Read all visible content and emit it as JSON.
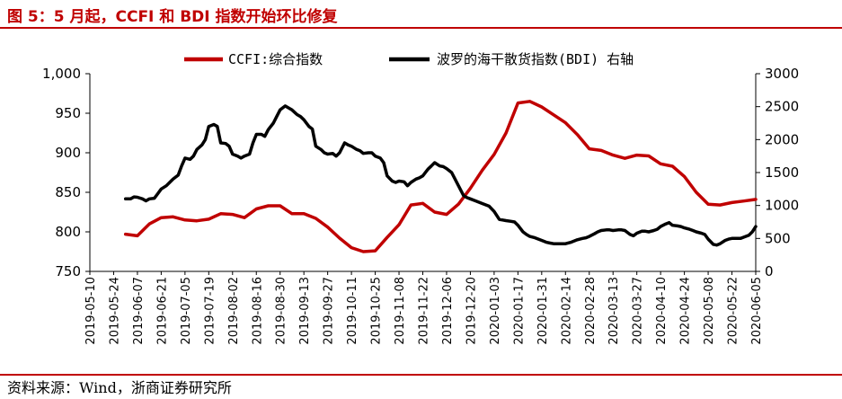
{
  "figure": {
    "title": "图 5：5 月起，CCFI 和 BDI 指数开始环比修复",
    "source": "资料来源：Wind，浙商证券研究所"
  },
  "colors": {
    "ccfi": "#c00000",
    "bdi": "#000000",
    "accent": "#c00000"
  },
  "chart_data": {
    "type": "line",
    "legend_placement": "top",
    "grid": false,
    "x_ticks": [
      "2019-05-10",
      "2019-05-24",
      "2019-06-07",
      "2019-06-21",
      "2019-07-05",
      "2019-07-19",
      "2019-08-02",
      "2019-08-16",
      "2019-08-30",
      "2019-09-13",
      "2019-09-27",
      "2019-10-11",
      "2019-10-25",
      "2019-11-08",
      "2019-11-22",
      "2019-12-06",
      "2019-12-20",
      "2020-01-03",
      "2020-01-17",
      "2020-01-31",
      "2020-02-14",
      "2020-02-28",
      "2020-03-13",
      "2020-03-27",
      "2020-04-10",
      "2020-04-24",
      "2020-05-08",
      "2020-05-22",
      "2020-06-05"
    ],
    "y_left": {
      "range": [
        750,
        1000
      ],
      "ticks": [
        750,
        800,
        850,
        900,
        950,
        1000
      ],
      "tick_labels": [
        "750",
        "800",
        "850",
        "900",
        "950",
        "1,000"
      ]
    },
    "y_right": {
      "range": [
        0,
        3000
      ],
      "ticks": [
        0,
        500,
        1000,
        1500,
        2000,
        2500,
        3000
      ],
      "tick_labels": [
        "0",
        "500",
        "1000",
        "1500",
        "2000",
        "2500",
        "3000"
      ]
    },
    "series": [
      {
        "name": "CCFI:综合指数",
        "axis": "left",
        "color": "#c00000",
        "points": [
          [
            "2019-05-31",
            797
          ],
          [
            "2019-06-07",
            795
          ],
          [
            "2019-06-14",
            810
          ],
          [
            "2019-06-21",
            818
          ],
          [
            "2019-06-28",
            819
          ],
          [
            "2019-07-05",
            815
          ],
          [
            "2019-07-12",
            814
          ],
          [
            "2019-07-19",
            816
          ],
          [
            "2019-07-26",
            823
          ],
          [
            "2019-08-02",
            822
          ],
          [
            "2019-08-09",
            818
          ],
          [
            "2019-08-16",
            829
          ],
          [
            "2019-08-23",
            833
          ],
          [
            "2019-08-30",
            833
          ],
          [
            "2019-09-06",
            823
          ],
          [
            "2019-09-13",
            823
          ],
          [
            "2019-09-20",
            817
          ],
          [
            "2019-09-27",
            806
          ],
          [
            "2019-10-04",
            792
          ],
          [
            "2019-10-11",
            780
          ],
          [
            "2019-10-18",
            775
          ],
          [
            "2019-10-25",
            776
          ],
          [
            "2019-11-01",
            793
          ],
          [
            "2019-11-08",
            809
          ],
          [
            "2019-11-15",
            834
          ],
          [
            "2019-11-22",
            836
          ],
          [
            "2019-11-29",
            825
          ],
          [
            "2019-12-06",
            822
          ],
          [
            "2019-12-13",
            835
          ],
          [
            "2019-12-20",
            855
          ],
          [
            "2019-12-27",
            878
          ],
          [
            "2020-01-03",
            898
          ],
          [
            "2020-01-10",
            925
          ],
          [
            "2020-01-17",
            963
          ],
          [
            "2020-01-24",
            965
          ],
          [
            "2020-01-31",
            958
          ],
          [
            "2020-02-07",
            948
          ],
          [
            "2020-02-14",
            938
          ],
          [
            "2020-02-21",
            923
          ],
          [
            "2020-02-28",
            905
          ],
          [
            "2020-03-06",
            903
          ],
          [
            "2020-03-13",
            897
          ],
          [
            "2020-03-20",
            893
          ],
          [
            "2020-03-27",
            897
          ],
          [
            "2020-04-03",
            896
          ],
          [
            "2020-04-10",
            886
          ],
          [
            "2020-04-17",
            883
          ],
          [
            "2020-04-24",
            870
          ],
          [
            "2020-05-01",
            850
          ],
          [
            "2020-05-08",
            835
          ],
          [
            "2020-05-15",
            834
          ],
          [
            "2020-05-22",
            837
          ],
          [
            "2020-05-29",
            839
          ],
          [
            "2020-06-05",
            841
          ]
        ]
      },
      {
        "name": "波罗的海干散货指数(BDI) 右轴",
        "axis": "right",
        "color": "#000000",
        "points": [
          [
            "2019-05-31",
            1100
          ],
          [
            "2019-06-03",
            1100
          ],
          [
            "2019-06-05",
            1130
          ],
          [
            "2019-06-07",
            1125
          ],
          [
            "2019-06-10",
            1100
          ],
          [
            "2019-06-12",
            1070
          ],
          [
            "2019-06-14",
            1100
          ],
          [
            "2019-06-17",
            1110
          ],
          [
            "2019-06-19",
            1180
          ],
          [
            "2019-06-21",
            1250
          ],
          [
            "2019-06-24",
            1300
          ],
          [
            "2019-06-26",
            1350
          ],
          [
            "2019-06-28",
            1400
          ],
          [
            "2019-07-01",
            1460
          ],
          [
            "2019-07-03",
            1600
          ],
          [
            "2019-07-05",
            1720
          ],
          [
            "2019-07-08",
            1700
          ],
          [
            "2019-07-10",
            1750
          ],
          [
            "2019-07-12",
            1850
          ],
          [
            "2019-07-15",
            1920
          ],
          [
            "2019-07-17",
            2000
          ],
          [
            "2019-07-19",
            2200
          ],
          [
            "2019-07-22",
            2230
          ],
          [
            "2019-07-24",
            2200
          ],
          [
            "2019-07-26",
            1950
          ],
          [
            "2019-07-29",
            1940
          ],
          [
            "2019-07-31",
            1900
          ],
          [
            "2019-08-02",
            1780
          ],
          [
            "2019-08-05",
            1750
          ],
          [
            "2019-08-07",
            1720
          ],
          [
            "2019-08-09",
            1750
          ],
          [
            "2019-08-12",
            1780
          ],
          [
            "2019-08-14",
            1950
          ],
          [
            "2019-08-16",
            2080
          ],
          [
            "2019-08-19",
            2080
          ],
          [
            "2019-08-21",
            2050
          ],
          [
            "2019-08-23",
            2150
          ],
          [
            "2019-08-26",
            2250
          ],
          [
            "2019-08-28",
            2350
          ],
          [
            "2019-08-30",
            2450
          ],
          [
            "2019-09-02",
            2510
          ],
          [
            "2019-09-04",
            2480
          ],
          [
            "2019-09-06",
            2450
          ],
          [
            "2019-09-09",
            2380
          ],
          [
            "2019-09-11",
            2350
          ],
          [
            "2019-09-13",
            2300
          ],
          [
            "2019-09-16",
            2200
          ],
          [
            "2019-09-18",
            2160
          ],
          [
            "2019-09-20",
            1900
          ],
          [
            "2019-09-23",
            1850
          ],
          [
            "2019-09-25",
            1800
          ],
          [
            "2019-09-27",
            1780
          ],
          [
            "2019-09-30",
            1790
          ],
          [
            "2019-10-02",
            1750
          ],
          [
            "2019-10-04",
            1800
          ],
          [
            "2019-10-07",
            1950
          ],
          [
            "2019-10-09",
            1920
          ],
          [
            "2019-10-11",
            1900
          ],
          [
            "2019-10-14",
            1850
          ],
          [
            "2019-10-16",
            1830
          ],
          [
            "2019-10-18",
            1790
          ],
          [
            "2019-10-21",
            1800
          ],
          [
            "2019-10-23",
            1800
          ],
          [
            "2019-10-25",
            1750
          ],
          [
            "2019-10-28",
            1720
          ],
          [
            "2019-10-30",
            1650
          ],
          [
            "2019-11-01",
            1450
          ],
          [
            "2019-11-04",
            1370
          ],
          [
            "2019-11-06",
            1350
          ],
          [
            "2019-11-08",
            1370
          ],
          [
            "2019-11-11",
            1360
          ],
          [
            "2019-11-13",
            1300
          ],
          [
            "2019-11-15",
            1350
          ],
          [
            "2019-11-18",
            1400
          ],
          [
            "2019-11-20",
            1420
          ],
          [
            "2019-11-22",
            1450
          ],
          [
            "2019-11-25",
            1550
          ],
          [
            "2019-11-27",
            1600
          ],
          [
            "2019-11-29",
            1650
          ],
          [
            "2019-12-02",
            1600
          ],
          [
            "2019-12-04",
            1590
          ],
          [
            "2019-12-06",
            1560
          ],
          [
            "2019-12-09",
            1500
          ],
          [
            "2019-12-11",
            1400
          ],
          [
            "2019-12-13",
            1300
          ],
          [
            "2019-12-16",
            1150
          ],
          [
            "2019-12-18",
            1120
          ],
          [
            "2019-12-20",
            1100
          ],
          [
            "2019-12-23",
            1070
          ],
          [
            "2019-12-27",
            1030
          ],
          [
            "2019-12-31",
            990
          ],
          [
            "2020-01-03",
            910
          ],
          [
            "2020-01-06",
            790
          ],
          [
            "2020-01-08",
            780
          ],
          [
            "2020-01-10",
            770
          ],
          [
            "2020-01-13",
            760
          ],
          [
            "2020-01-15",
            750
          ],
          [
            "2020-01-17",
            700
          ],
          [
            "2020-01-20",
            600
          ],
          [
            "2020-01-22",
            560
          ],
          [
            "2020-01-24",
            530
          ],
          [
            "2020-01-27",
            510
          ],
          [
            "2020-01-31",
            470
          ],
          [
            "2020-02-03",
            440
          ],
          [
            "2020-02-05",
            430
          ],
          [
            "2020-02-07",
            420
          ],
          [
            "2020-02-10",
            420
          ],
          [
            "2020-02-12",
            420
          ],
          [
            "2020-02-14",
            420
          ],
          [
            "2020-02-17",
            440
          ],
          [
            "2020-02-19",
            460
          ],
          [
            "2020-02-21",
            480
          ],
          [
            "2020-02-24",
            500
          ],
          [
            "2020-02-26",
            510
          ],
          [
            "2020-02-28",
            530
          ],
          [
            "2020-03-02",
            570
          ],
          [
            "2020-03-04",
            600
          ],
          [
            "2020-03-06",
            620
          ],
          [
            "2020-03-09",
            630
          ],
          [
            "2020-03-11",
            630
          ],
          [
            "2020-03-13",
            620
          ],
          [
            "2020-03-16",
            630
          ],
          [
            "2020-03-18",
            630
          ],
          [
            "2020-03-20",
            620
          ],
          [
            "2020-03-23",
            560
          ],
          [
            "2020-03-25",
            540
          ],
          [
            "2020-03-27",
            580
          ],
          [
            "2020-03-30",
            610
          ],
          [
            "2020-04-01",
            610
          ],
          [
            "2020-04-03",
            600
          ],
          [
            "2020-04-06",
            620
          ],
          [
            "2020-04-08",
            640
          ],
          [
            "2020-04-10",
            680
          ],
          [
            "2020-04-13",
            720
          ],
          [
            "2020-04-15",
            740
          ],
          [
            "2020-04-17",
            700
          ],
          [
            "2020-04-20",
            690
          ],
          [
            "2020-04-22",
            680
          ],
          [
            "2020-04-24",
            660
          ],
          [
            "2020-04-27",
            640
          ],
          [
            "2020-04-29",
            620
          ],
          [
            "2020-05-01",
            600
          ],
          [
            "2020-05-04",
            580
          ],
          [
            "2020-05-06",
            560
          ],
          [
            "2020-05-08",
            490
          ],
          [
            "2020-05-11",
            410
          ],
          [
            "2020-05-13",
            400
          ],
          [
            "2020-05-15",
            420
          ],
          [
            "2020-05-18",
            470
          ],
          [
            "2020-05-20",
            490
          ],
          [
            "2020-05-22",
            500
          ],
          [
            "2020-05-25",
            500
          ],
          [
            "2020-05-27",
            500
          ],
          [
            "2020-05-29",
            520
          ],
          [
            "2020-06-01",
            550
          ],
          [
            "2020-06-03",
            600
          ],
          [
            "2020-06-05",
            680
          ]
        ]
      }
    ]
  }
}
